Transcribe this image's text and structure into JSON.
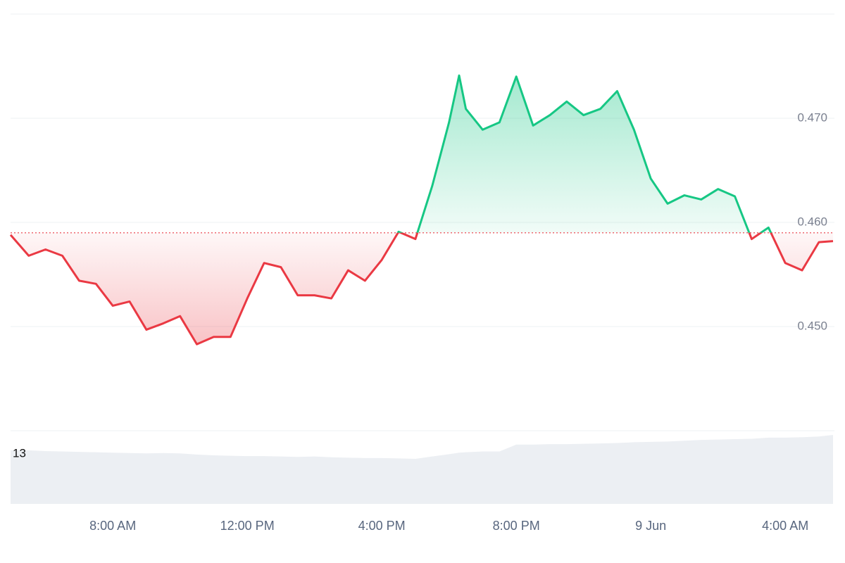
{
  "chart_data": {
    "type": "line",
    "x": [
      4.96,
      5.5,
      6.0,
      6.5,
      7.0,
      7.5,
      8.0,
      8.5,
      9.0,
      9.5,
      10.0,
      10.5,
      11.0,
      11.5,
      12.0,
      12.5,
      13.0,
      13.5,
      14.0,
      14.5,
      15.0,
      15.5,
      16.0,
      16.5,
      17.0,
      17.5,
      18.0,
      18.3,
      18.5,
      19.0,
      19.5,
      20.0,
      20.5,
      21.0,
      21.5,
      22.0,
      22.5,
      23.0,
      23.5,
      24.0,
      24.5,
      25.0,
      25.5,
      26.0,
      26.5,
      27.0,
      27.5,
      28.0,
      28.5,
      29.0,
      29.42
    ],
    "series": [
      {
        "values": [
          0.4588,
          0.4568,
          0.4574,
          0.4568,
          0.4544,
          0.4541,
          0.452,
          0.4524,
          0.4497,
          0.4503,
          0.451,
          0.4483,
          0.449,
          0.449,
          0.4527,
          0.4561,
          0.4557,
          0.453,
          0.453,
          0.4527,
          0.4554,
          0.4544,
          0.4564,
          0.4591,
          0.4584,
          0.4635,
          0.4696,
          0.4741,
          0.4709,
          0.4689,
          0.4696,
          0.474,
          0.4693,
          0.4703,
          0.4716,
          0.4703,
          0.4709,
          0.4726,
          0.4689,
          0.4642,
          0.4618,
          0.4626,
          0.4622,
          0.4632,
          0.4625,
          0.4584,
          0.4595,
          0.4561,
          0.4554,
          0.4581,
          0.4582
        ],
        "up_color": "#16c784",
        "down_color": "#ea3943"
      },
      {
        "values": [
          13.9,
          13.9,
          13.7,
          13.6,
          13.5,
          13.4,
          13.3,
          13.2,
          13.1,
          13.2,
          13.1,
          12.8,
          12.6,
          12.5,
          12.4,
          12.4,
          12.3,
          12.2,
          12.3,
          12.1,
          12.0,
          11.9,
          11.9,
          11.8,
          11.7,
          12.3,
          12.9,
          13.3,
          13.4,
          13.6,
          13.6,
          15.4,
          15.4,
          15.5,
          15.5,
          15.6,
          15.7,
          15.8,
          16.0,
          16.1,
          16.2,
          16.4,
          16.6,
          16.7,
          16.8,
          16.9,
          17.2,
          17.2,
          17.3,
          17.5,
          17.9
        ],
        "axis": "y2",
        "color": "#eceff3"
      }
    ],
    "baseline": 0.459,
    "xlim": [
      4.96,
      29.42
    ],
    "xticks": [
      {
        "value": 8,
        "label": "8:00 AM"
      },
      {
        "value": 12,
        "label": "12:00 PM"
      },
      {
        "value": 16,
        "label": "4:00 PM"
      },
      {
        "value": 20,
        "label": "8:00 PM"
      },
      {
        "value": 24,
        "label": "9 Jun"
      },
      {
        "value": 28,
        "label": "4:00 AM"
      }
    ],
    "ylim": [
      0.44,
      0.48
    ],
    "yticks": [
      {
        "value": 0.45,
        "label": "0.450"
      },
      {
        "value": 0.46,
        "label": "0.460"
      },
      {
        "value": 0.47,
        "label": "0.470"
      }
    ],
    "y2lim": [
      0,
      19
    ],
    "y2ticks": [
      13
    ],
    "grid": true
  }
}
